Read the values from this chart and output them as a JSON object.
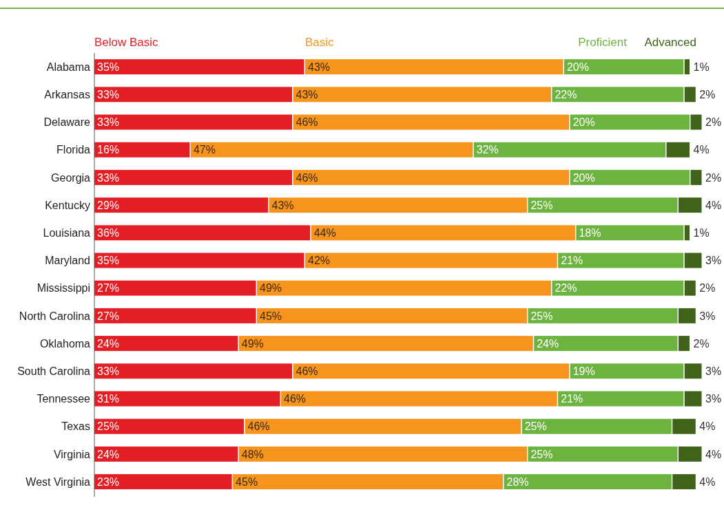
{
  "chart_data": {
    "type": "bar",
    "orientation": "horizontal",
    "stacked": true,
    "legend": "top",
    "xlim": [
      0,
      101
    ],
    "categories": [
      "Alabama",
      "Arkansas",
      "Delaware",
      "Florida",
      "Georgia",
      "Kentucky",
      "Louisiana",
      "Maryland",
      "Mississippi",
      "North Carolina",
      "Oklahoma",
      "South Carolina",
      "Tennessee",
      "Texas",
      "Virginia",
      "West Virginia"
    ],
    "series": [
      {
        "name": "Below Basic",
        "color": "#e31e24",
        "values": [
          35,
          33,
          33,
          16,
          33,
          29,
          36,
          35,
          27,
          27,
          24,
          33,
          31,
          25,
          24,
          23
        ],
        "value_labels": [
          "35%",
          "33%",
          "33%",
          "16%",
          "33%",
          "29%",
          "36%",
          "35%",
          "27%",
          "27%",
          "24%",
          "33%",
          "31%",
          "25%",
          "24%",
          "23%"
        ]
      },
      {
        "name": "Basic",
        "color": "#f7941d",
        "values": [
          43,
          43,
          46,
          47,
          46,
          43,
          44,
          42,
          49,
          45,
          49,
          46,
          46,
          46,
          48,
          45
        ],
        "value_labels": [
          "43%",
          "43%",
          "46%",
          "47%",
          "46%",
          "43%",
          "44%",
          "42%",
          "49%",
          "45%",
          "49%",
          "46%",
          "46%",
          "46%",
          "48%",
          "45%"
        ]
      },
      {
        "name": "Proficient",
        "color": "#6db33f",
        "values": [
          20,
          22,
          20,
          32,
          20,
          25,
          18,
          21,
          22,
          25,
          24,
          19,
          21,
          25,
          25,
          28
        ],
        "value_labels": [
          "20%",
          "22%",
          "20%",
          "32%",
          "20%",
          "25%",
          "18%",
          "21%",
          "22%",
          "25%",
          "24%",
          "19%",
          "21%",
          "25%",
          "25%",
          "28%"
        ]
      },
      {
        "name": "Advanced",
        "color": "#3f6318",
        "values": [
          1,
          2,
          2,
          4,
          2,
          4,
          1,
          3,
          2,
          3,
          2,
          3,
          3,
          4,
          4,
          4
        ],
        "value_labels": [
          "1%",
          "2%",
          "2%",
          "4%",
          "2%",
          "4%",
          "1%",
          "3%",
          "2%",
          "3%",
          "2%",
          "3%",
          "3%",
          "4%",
          "4%",
          "4%"
        ]
      }
    ]
  }
}
